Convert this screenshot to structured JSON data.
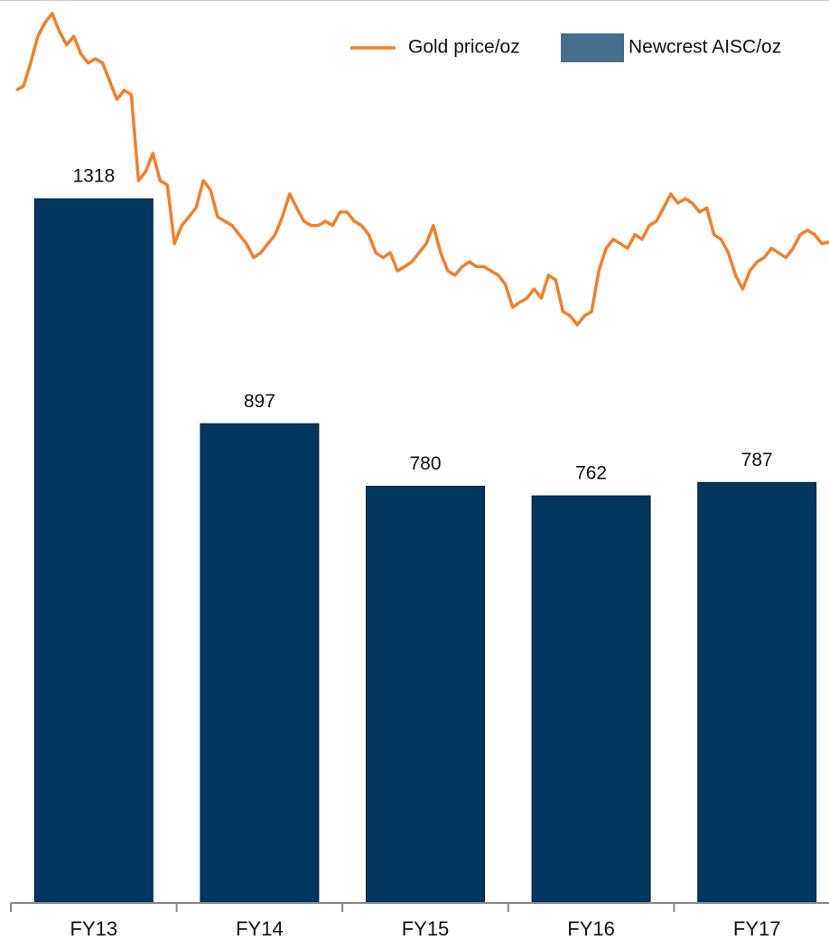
{
  "chart_data": {
    "type": "bar",
    "categories": [
      "FY13",
      "FY14",
      "FY15",
      "FY16",
      "FY17"
    ],
    "series": [
      {
        "name": "Newcrest AISC/oz",
        "color": "#003660",
        "values": [
          1318,
          897,
          780,
          762,
          787
        ]
      }
    ],
    "lines": [
      {
        "name": "Gold price/oz",
        "color": "#f0802c",
        "values": [
          1521,
          1529,
          1572,
          1622,
          1648,
          1665,
          1631,
          1606,
          1622,
          1589,
          1572,
          1580,
          1572,
          1538,
          1504,
          1521,
          1513,
          1352,
          1369,
          1403,
          1352,
          1344,
          1234,
          1268,
          1284,
          1301,
          1352,
          1335,
          1284,
          1276,
          1268,
          1251,
          1234,
          1208,
          1217,
          1234,
          1251,
          1284,
          1327,
          1301,
          1276,
          1268,
          1268,
          1276,
          1268,
          1293,
          1293,
          1276,
          1268,
          1251,
          1217,
          1208,
          1217,
          1183,
          1191,
          1200,
          1217,
          1234,
          1268,
          1217,
          1183,
          1175,
          1191,
          1200,
          1191,
          1191,
          1183,
          1175,
          1158,
          1115,
          1124,
          1132,
          1149,
          1132,
          1175,
          1166,
          1107,
          1099,
          1082,
          1099,
          1107,
          1183,
          1225,
          1242,
          1234,
          1225,
          1251,
          1242,
          1268,
          1276,
          1301,
          1327,
          1310,
          1318,
          1310,
          1293,
          1301,
          1251,
          1242,
          1217,
          1175,
          1149,
          1183,
          1200,
          1208,
          1225,
          1217,
          1208,
          1225,
          1251,
          1259,
          1251,
          1234,
          1237
        ]
      }
    ],
    "ylim": [
      0,
      1690
    ],
    "legend": "top-right"
  }
}
